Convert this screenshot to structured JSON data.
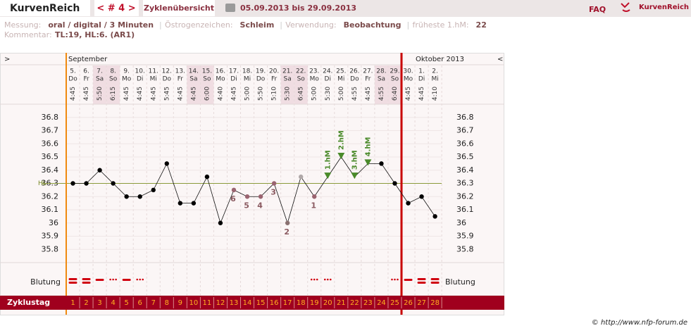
{
  "header": {
    "brand": "KurvenReich",
    "cycle_nav": "< # 4 >",
    "overview": "Zyklenübersicht",
    "period": "05.09.2013 bis 29.09.2013",
    "faq": "FAQ",
    "logo": "KurvenReich"
  },
  "info": {
    "fields": [
      {
        "label": "Messung:",
        "value": "oral / digital / 3 Minuten"
      },
      {
        "label": "Östrogenzeichen:",
        "value": "Schleim"
      },
      {
        "label": "Verwendung:",
        "value": "Beobachtung"
      },
      {
        "label": "früheste 1.hM:",
        "value": "22"
      }
    ],
    "separator": "|",
    "comment_label": "Kommentar:",
    "comment": "TL:19, HL:6. (AR1)"
  },
  "chart_data": {
    "type": "line",
    "nav_left": ">",
    "nav_right": "<",
    "month_labels": [
      "September",
      null,
      null,
      null,
      null,
      null,
      null,
      null,
      null,
      null,
      null,
      null,
      null,
      null,
      null,
      null,
      null,
      null,
      null,
      null,
      null,
      null,
      null,
      null,
      null,
      "Oktober 2013",
      null,
      null
    ],
    "categories": [
      "5.",
      "6.",
      "7.",
      "8.",
      "9.",
      "10.",
      "11.",
      "12.",
      "13.",
      "14.",
      "15.",
      "16.",
      "17.",
      "18.",
      "19.",
      "20.",
      "21.",
      "22.",
      "23.",
      "24.",
      "25.",
      "26.",
      "27.",
      "28.",
      "29.",
      "30.",
      "1.",
      "2."
    ],
    "weekdays": [
      "Do",
      "Fr",
      "Sa",
      "So",
      "Mo",
      "Di",
      "Mi",
      "Do",
      "Fr",
      "Sa",
      "So",
      "Mo",
      "Di",
      "Mi",
      "Do",
      "Fr",
      "Sa",
      "So",
      "Mo",
      "Di",
      "Mi",
      "Do",
      "Fr",
      "Sa",
      "So",
      "Mo",
      "Di",
      "Mi"
    ],
    "times": [
      "4:45",
      "4:45",
      "5:50",
      "6:15",
      "4:45",
      "4:45",
      "4:45",
      "5:45",
      "4:45",
      "4:45",
      "6:00",
      "4:40",
      "4:45",
      "5:00",
      "5:50",
      "5:10",
      "5:30",
      "6:45",
      "5:00",
      "5:30",
      "5:00",
      "4:55",
      "4:45",
      "4:55",
      "6:40",
      "4:45",
      "4:45",
      "4:10"
    ],
    "values": [
      36.3,
      36.3,
      36.4,
      36.3,
      36.2,
      36.2,
      36.25,
      36.45,
      36.15,
      36.15,
      36.35,
      36.0,
      36.25,
      36.2,
      36.2,
      36.3,
      36.0,
      36.35,
      36.2,
      36.35,
      36.5,
      36.35,
      36.45,
      36.45,
      36.3,
      36.15,
      36.2,
      36.05
    ],
    "point_colors": [
      "#000",
      "#000",
      "#000",
      "#000",
      "#000",
      "#000",
      "#000",
      "#000",
      "#000",
      "#000",
      "#000",
      "#000",
      "#9a6470",
      "#9a6470",
      "#9a6470",
      "#9a6470",
      "#8a7070",
      "#b0a8a8",
      "#9a6470",
      "#000",
      "#000",
      "#000",
      "#000",
      "#000",
      "#000",
      "#000",
      "#000",
      "#000"
    ],
    "low_marks": [
      null,
      null,
      null,
      null,
      null,
      null,
      null,
      null,
      null,
      null,
      null,
      null,
      6,
      5,
      4,
      3,
      2,
      null,
      1,
      null,
      null,
      null,
      null,
      null,
      null,
      null,
      null,
      null
    ],
    "high_marks": [
      null,
      null,
      null,
      null,
      null,
      null,
      null,
      null,
      null,
      null,
      null,
      null,
      null,
      null,
      null,
      null,
      null,
      null,
      null,
      "1.hM",
      "2.hM",
      "3.hM",
      "4.hM",
      null,
      null,
      null,
      null,
      null
    ],
    "baseline": 36.3,
    "baseline_label": "HL",
    "ylim": [
      35.7,
      36.9
    ],
    "yticks": [
      35.8,
      35.9,
      36,
      36.1,
      36.2,
      36.3,
      36.4,
      36.5,
      36.6,
      36.7,
      36.8
    ],
    "bleeding_label": "Blutung",
    "bleeding": [
      "heavy",
      "heavy",
      "medium",
      "light",
      "medium",
      "light",
      null,
      null,
      null,
      null,
      null,
      null,
      null,
      null,
      null,
      null,
      null,
      null,
      "light",
      "light",
      null,
      null,
      null,
      null,
      "light",
      "medium",
      "heavy",
      "heavy"
    ],
    "cycle_day_label": "Zyklustag",
    "cycle_days": [
      1,
      2,
      3,
      4,
      5,
      6,
      7,
      8,
      9,
      10,
      11,
      12,
      13,
      14,
      15,
      16,
      17,
      18,
      19,
      20,
      21,
      22,
      23,
      24,
      25,
      26,
      27,
      28
    ]
  },
  "footer": "© http://www.nfp-forum.de"
}
